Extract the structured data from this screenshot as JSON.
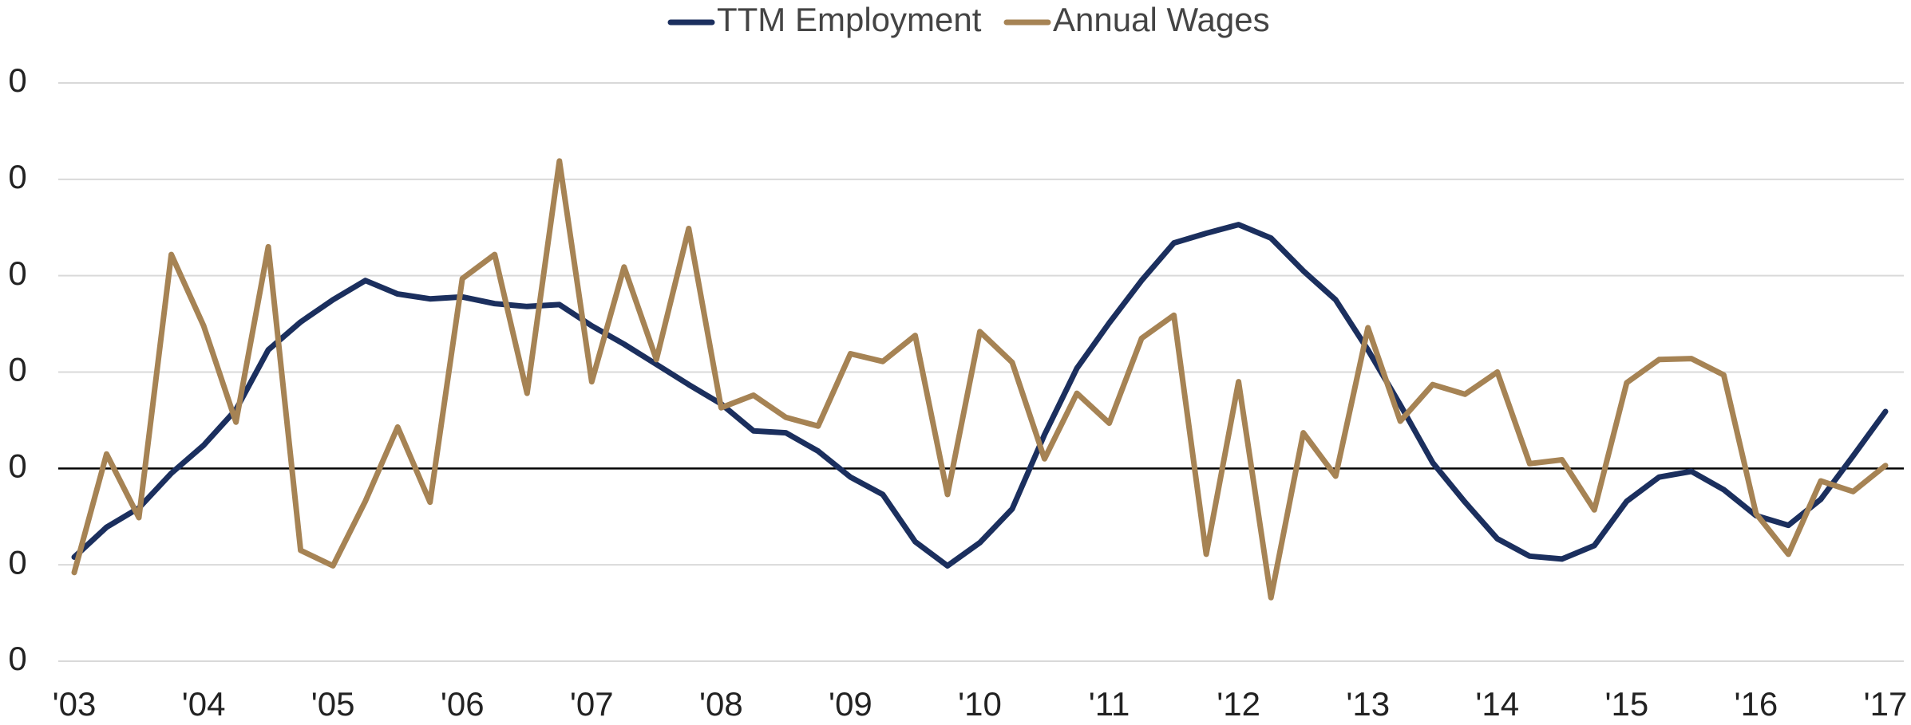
{
  "chart_data": {
    "type": "line",
    "categories": [
      "'03",
      null,
      null,
      null,
      "'04",
      null,
      null,
      null,
      "'05",
      null,
      null,
      null,
      "'06",
      null,
      null,
      null,
      "'07",
      null,
      null,
      null,
      "'08",
      null,
      null,
      null,
      "'09",
      null,
      null,
      null,
      "'10",
      null,
      null,
      null,
      "'11",
      null,
      null,
      null,
      "'12",
      null,
      null,
      null,
      "'13",
      null,
      null,
      null,
      "'14",
      null,
      null,
      null,
      "'15",
      null,
      null,
      null,
      "'16",
      null,
      null,
      null,
      "'17"
    ],
    "series": [
      {
        "name": "TTM Employment",
        "color": "#1b2f5e",
        "values": [
          -0.92,
          -0.61,
          -0.41,
          -0.05,
          0.24,
          0.61,
          1.23,
          1.52,
          1.75,
          1.95,
          1.81,
          1.76,
          1.78,
          1.71,
          1.68,
          1.7,
          1.48,
          1.29,
          1.08,
          0.87,
          0.67,
          0.39,
          0.37,
          0.18,
          -0.09,
          -0.27,
          -0.76,
          -1.01,
          -0.77,
          -0.42,
          0.35,
          1.04,
          1.51,
          1.95,
          2.34,
          2.44,
          2.53,
          2.39,
          2.05,
          1.75,
          1.23,
          0.66,
          0.06,
          -0.35,
          -0.73,
          -0.91,
          -0.94,
          -0.8,
          -0.34,
          -0.09,
          -0.03,
          -0.22,
          -0.49,
          -0.59,
          -0.32,
          0.13,
          0.59
        ]
      },
      {
        "name": "Annual Wages",
        "color": "#a68354",
        "values": [
          -1.08,
          0.15,
          -0.51,
          2.22,
          1.48,
          0.48,
          2.3,
          -0.85,
          -1.01,
          -0.34,
          0.43,
          -0.35,
          1.97,
          2.22,
          0.78,
          3.19,
          0.9,
          2.09,
          1.13,
          2.49,
          0.63,
          0.76,
          0.53,
          0.44,
          1.19,
          1.11,
          1.38,
          -0.27,
          1.42,
          1.1,
          0.1,
          0.78,
          0.47,
          1.35,
          1.59,
          -0.89,
          0.9,
          -1.34,
          0.37,
          -0.08,
          1.46,
          0.49,
          0.87,
          0.77,
          1.0,
          0.05,
          0.09,
          -0.43,
          0.89,
          1.13,
          1.14,
          0.97,
          -0.47,
          -0.89,
          -0.13,
          -0.24,
          0.03
        ]
      }
    ],
    "ylim": [
      -2,
      4
    ],
    "yticks": [
      {
        "value": -2,
        "label": "0"
      },
      {
        "value": -1,
        "label": "0"
      },
      0,
      {
        "value": 1,
        "label": "0"
      },
      {
        "value": 2,
        "label": "0"
      },
      {
        "value": 3,
        "label": "0"
      },
      {
        "value": 4,
        "label": "0"
      }
    ],
    "grid": true,
    "legend": "top"
  }
}
